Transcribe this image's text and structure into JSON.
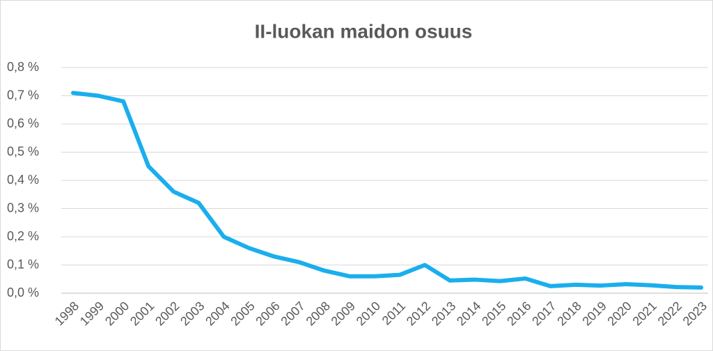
{
  "chart_data": {
    "type": "line",
    "title": "II-luokan maidon osuus",
    "categories": [
      "1998",
      "1999",
      "2000",
      "2001",
      "2002",
      "2003",
      "2004",
      "2005",
      "2006",
      "2007",
      "2008",
      "2009",
      "2010",
      "2011",
      "2012",
      "2013",
      "2014",
      "2015",
      "2016",
      "2017",
      "2018",
      "2019",
      "2020",
      "2021",
      "2022",
      "2023"
    ],
    "values": [
      0.71,
      0.7,
      0.68,
      0.45,
      0.36,
      0.32,
      0.2,
      0.16,
      0.13,
      0.11,
      0.08,
      0.06,
      0.06,
      0.065,
      0.1,
      0.045,
      0.048,
      0.043,
      0.052,
      0.025,
      0.03,
      0.027,
      0.032,
      0.028,
      0.022,
      0.02
    ],
    "color": "#1aaeec",
    "ylim": [
      0,
      0.8
    ],
    "yticks": [
      {
        "value": 0,
        "label": "0,0 %"
      },
      {
        "value": 0.1,
        "label": "0,1 %"
      },
      {
        "value": 0.2,
        "label": "0,2 %"
      },
      {
        "value": 0.3,
        "label": "0,3 %"
      },
      {
        "value": 0.4,
        "label": "0,4 %"
      },
      {
        "value": 0.5,
        "label": "0,5 %"
      },
      {
        "value": 0.6,
        "label": "0,6 %"
      },
      {
        "value": 0.7,
        "label": "0,7 %"
      },
      {
        "value": 0.8,
        "label": "0,8 %"
      }
    ],
    "grid": true
  }
}
